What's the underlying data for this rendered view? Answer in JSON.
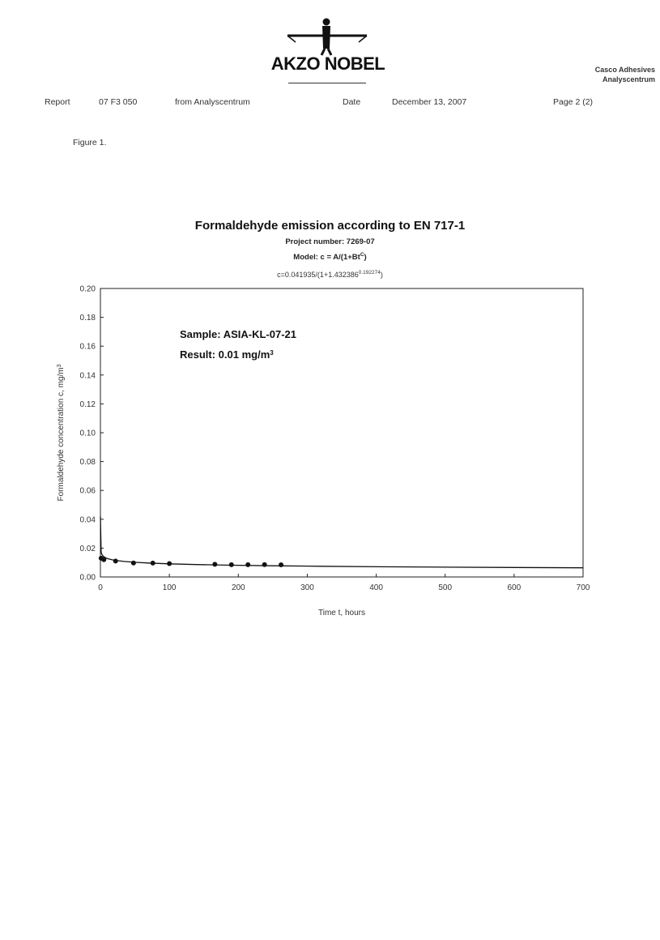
{
  "header": {
    "company": "AKZO NOBEL",
    "department_line1": "Casco Adhesives",
    "department_line2": "Analyscentrum",
    "report_label": "Report",
    "report_number": "07 F3 050",
    "report_from": "from Analyscentrum",
    "date_label": "Date",
    "date_value": "December 13, 2007",
    "page": "Page 2 (2)"
  },
  "figure_caption": "Figure 1.",
  "chart_data": {
    "type": "scatter",
    "title": "Formaldehyde emission according to EN 717-1",
    "subtitle": "Project number: 7269-07",
    "model_label": "Model: c = A/(1+Bt",
    "model_exp": "C",
    "model_close": ")",
    "fit_equation": "c=0.041935/(1+1.432386",
    "fit_exp": "0.192274",
    "fit_close": ")",
    "xlabel": "Time t, hours",
    "ylabel": "Formaldehyde concentration c, mg/m",
    "ylabel_sup": "3",
    "xlim": [
      0,
      700
    ],
    "ylim": [
      0,
      0.2
    ],
    "xticks": [
      0,
      100,
      200,
      300,
      400,
      500,
      600,
      700
    ],
    "yticks": [
      "0.00",
      "0.02",
      "0.04",
      "0.06",
      "0.08",
      "0.10",
      "0.12",
      "0.14",
      "0.16",
      "0.18",
      "0.20"
    ],
    "annotations": [
      {
        "text": "Sample: ASIA-KL-07-21"
      },
      {
        "text": "Result: 0.01 mg/m",
        "sup": "3"
      }
    ],
    "series": [
      {
        "marker": "circle",
        "x": [
          1,
          5,
          22,
          48,
          76,
          100,
          166,
          190,
          214,
          238,
          262
        ],
        "y": [
          0.013,
          0.012,
          0.011,
          0.0097,
          0.0096,
          0.0093,
          0.0088,
          0.0085,
          0.0085,
          0.0086,
          0.0084
        ]
      }
    ],
    "fit": {
      "A": 0.041935,
      "B": 1.432386,
      "C": 0.192274,
      "x": [
        0,
        1,
        2,
        3,
        5,
        8,
        12,
        18,
        25,
        35,
        50,
        70,
        100,
        140,
        190,
        250,
        320,
        400,
        500,
        600,
        700
      ],
      "y": [
        0.041935,
        0.01723,
        0.0158,
        0.01497,
        0.01397,
        0.01312,
        0.01245,
        0.01179,
        0.01127,
        0.01075,
        0.01019,
        0.00966,
        0.00911,
        0.0086,
        0.00815,
        0.00774,
        0.00739,
        0.00708,
        0.00679,
        0.00656,
        0.00637
      ]
    }
  }
}
